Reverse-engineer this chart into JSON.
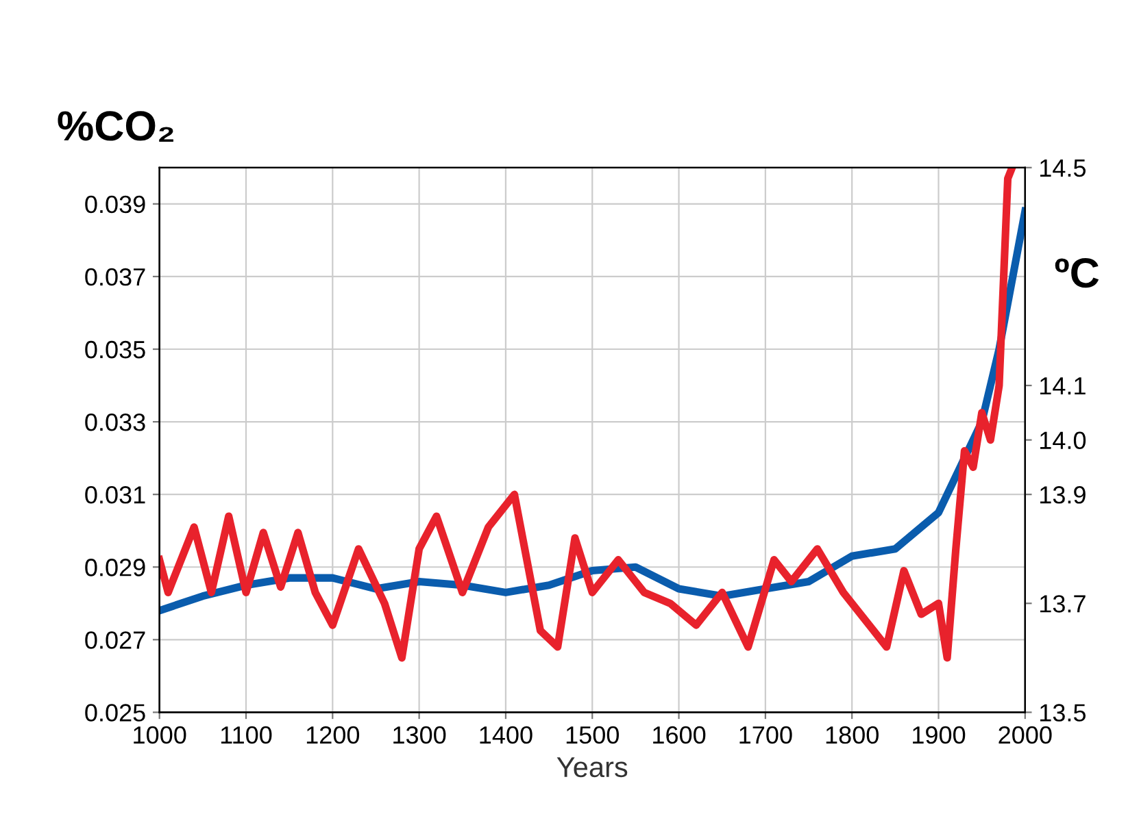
{
  "chart_data": {
    "type": "line",
    "ylabel": "%CO₂",
    "y2label": "ºC",
    "xlabel": "Years",
    "xlim": [
      1000,
      2000
    ],
    "xticks": [
      1000,
      1100,
      1200,
      1300,
      1400,
      1500,
      1600,
      1700,
      1800,
      1900,
      2000
    ],
    "ylim": [
      0.025,
      0.04
    ],
    "yticks": [
      {
        "value": 0.025,
        "label": "0.025"
      },
      {
        "value": 0.027,
        "label": "0.027"
      },
      {
        "value": 0.029,
        "label": "0.029"
      },
      {
        "value": 0.031,
        "label": "0.031"
      },
      {
        "value": 0.033,
        "label": "0.033"
      },
      {
        "value": 0.035,
        "label": "0.035"
      },
      {
        "value": 0.037,
        "label": "0.037"
      },
      {
        "value": 0.039,
        "label": "0.039"
      }
    ],
    "y2lim": [
      13.5,
      14.5
    ],
    "y2ticks": [
      13.5,
      13.7,
      13.9,
      {
        "value": 14.0,
        "label": "14.0"
      },
      14.1,
      14.5
    ],
    "grid": true,
    "marker": "none",
    "line_style": "solid",
    "legend": false,
    "series": [
      {
        "color": "#0a5cad",
        "x": [
          1000,
          1050,
          1100,
          1150,
          1200,
          1250,
          1300,
          1350,
          1400,
          1450,
          1500,
          1550,
          1600,
          1650,
          1700,
          1750,
          1800,
          1850,
          1900,
          1950,
          1970,
          2000
        ],
        "values": [
          0.0278,
          0.0282,
          0.0285,
          0.0287,
          0.0287,
          0.0284,
          0.0286,
          0.0285,
          0.0283,
          0.0285,
          0.0289,
          0.029,
          0.0284,
          0.0282,
          0.0284,
          0.0286,
          0.0293,
          0.0295,
          0.0305,
          0.033,
          0.035,
          0.0388
        ]
      },
      {
        "color": "#e8222c",
        "axis": "y2",
        "x": [
          1000,
          1010,
          1040,
          1060,
          1080,
          1100,
          1120,
          1140,
          1160,
          1180,
          1200,
          1230,
          1260,
          1280,
          1300,
          1320,
          1350,
          1380,
          1410,
          1440,
          1460,
          1480,
          1500,
          1530,
          1560,
          1590,
          1620,
          1650,
          1680,
          1710,
          1730,
          1760,
          1790,
          1820,
          1840,
          1860,
          1880,
          1900,
          1910,
          1920,
          1930,
          1940,
          1950,
          1960,
          1970,
          1980,
          1985
        ],
        "values": [
          13.78,
          13.72,
          13.84,
          13.72,
          13.86,
          13.72,
          13.83,
          13.73,
          13.83,
          13.72,
          13.66,
          13.8,
          13.7,
          13.6,
          13.8,
          13.86,
          13.72,
          13.84,
          13.9,
          13.65,
          13.62,
          13.82,
          13.72,
          13.78,
          13.72,
          13.7,
          13.66,
          13.72,
          13.62,
          13.78,
          13.74,
          13.8,
          13.72,
          13.66,
          13.62,
          13.76,
          13.68,
          13.7,
          13.6,
          13.8,
          13.98,
          13.95,
          14.05,
          14.0,
          14.1,
          14.48,
          14.5
        ]
      }
    ]
  }
}
